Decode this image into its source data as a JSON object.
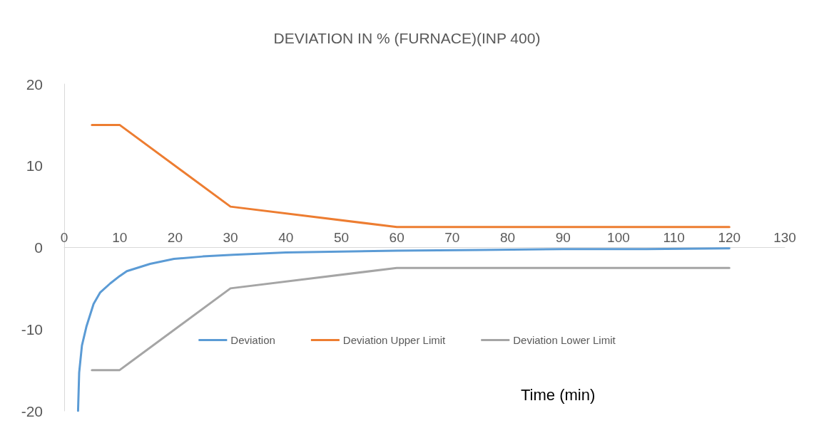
{
  "chart_data": {
    "type": "line",
    "title": "DEVIATION IN % (FURNACE)(INP 400)",
    "xlabel": "Time (min)",
    "xlim": [
      0,
      130
    ],
    "xticks": [
      0,
      10,
      20,
      30,
      40,
      50,
      60,
      70,
      80,
      90,
      100,
      110,
      120,
      130
    ],
    "ylim": [
      -20,
      20
    ],
    "yticks": [
      -20,
      -10,
      0,
      10,
      20
    ],
    "grid": false,
    "legend": "bottom",
    "marker": "none",
    "line_style": "solid",
    "series": [
      {
        "name": "Deviation",
        "color": "#5b9bd5",
        "x": [
          2.5,
          2.7,
          3.2,
          4,
          5.3,
          6.5,
          8.3,
          10,
          11.3,
          15.5,
          19.8,
          25,
          30.5,
          40,
          50,
          60,
          75,
          90,
          105,
          120
        ],
        "values": [
          -20,
          -15.3,
          -12,
          -9.7,
          -6.9,
          -5.5,
          -4.4,
          -3.5,
          -2.9,
          -2,
          -1.4,
          -1.1,
          -0.9,
          -0.6,
          -0.5,
          -0.4,
          -0.3,
          -0.2,
          -0.2,
          -0.1
        ]
      },
      {
        "name": "Deviation Upper Limit",
        "color": "#ed7d31",
        "x": [
          5,
          10,
          30,
          60,
          120
        ],
        "values": [
          15,
          15,
          5,
          2.5,
          2.5
        ]
      },
      {
        "name": "Deviation Lower Limit",
        "color": "#a5a5a5",
        "x": [
          5,
          10,
          30,
          60,
          120
        ],
        "values": [
          -15,
          -15,
          -5,
          -2.5,
          -2.5
        ]
      }
    ]
  }
}
